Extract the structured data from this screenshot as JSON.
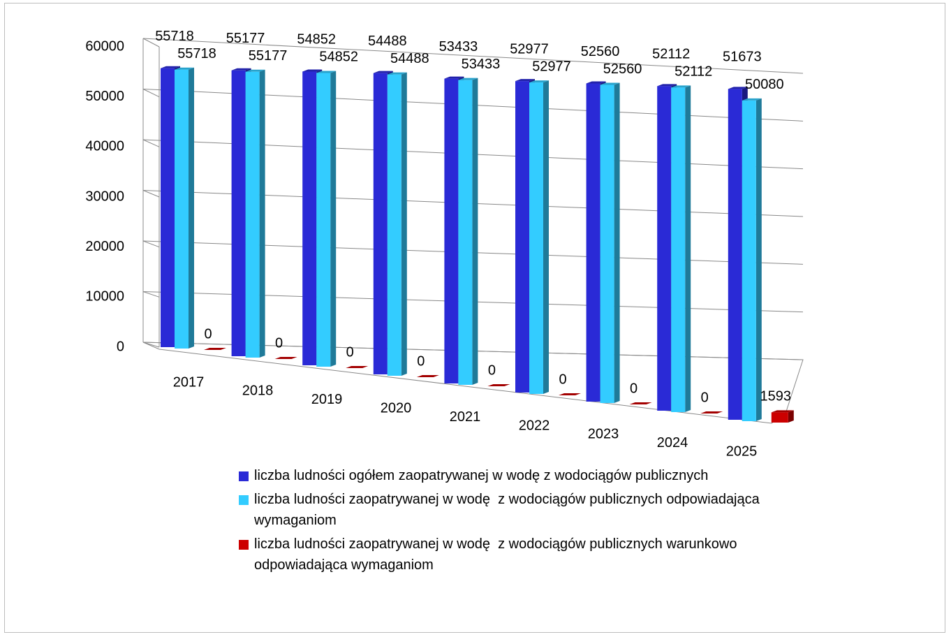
{
  "chart_data": {
    "type": "bar3d",
    "categories": [
      "2017",
      "2018",
      "2019",
      "2020",
      "2021",
      "2022",
      "2023",
      "2024",
      "2025"
    ],
    "series": [
      {
        "name": "liczba ludności ogółem zaopatrywanej w wodę z wodociągów publicznych",
        "color": "#2a2ad6",
        "values": [
          55718,
          55177,
          54852,
          54488,
          53433,
          52977,
          52560,
          52112,
          51673
        ]
      },
      {
        "name": "liczba ludności zaopatrywanej w wodę  z wodociągów publicznych odpowiadająca wymaganiom",
        "color": "#33ccff",
        "values": [
          55718,
          55177,
          54852,
          54488,
          53433,
          52977,
          52560,
          52112,
          50080
        ]
      },
      {
        "name": "liczba ludności zaopatrywanej w wodę  z wodociągów publicznych warunkowo odpowiadająca wymaganiom",
        "color": "#cc0000",
        "values": [
          0,
          0,
          0,
          0,
          0,
          0,
          0,
          0,
          1593
        ]
      }
    ],
    "ylim": [
      0,
      60000
    ],
    "yticks": [
      0,
      10000,
      20000,
      30000,
      40000,
      50000,
      60000
    ],
    "grid": true
  }
}
